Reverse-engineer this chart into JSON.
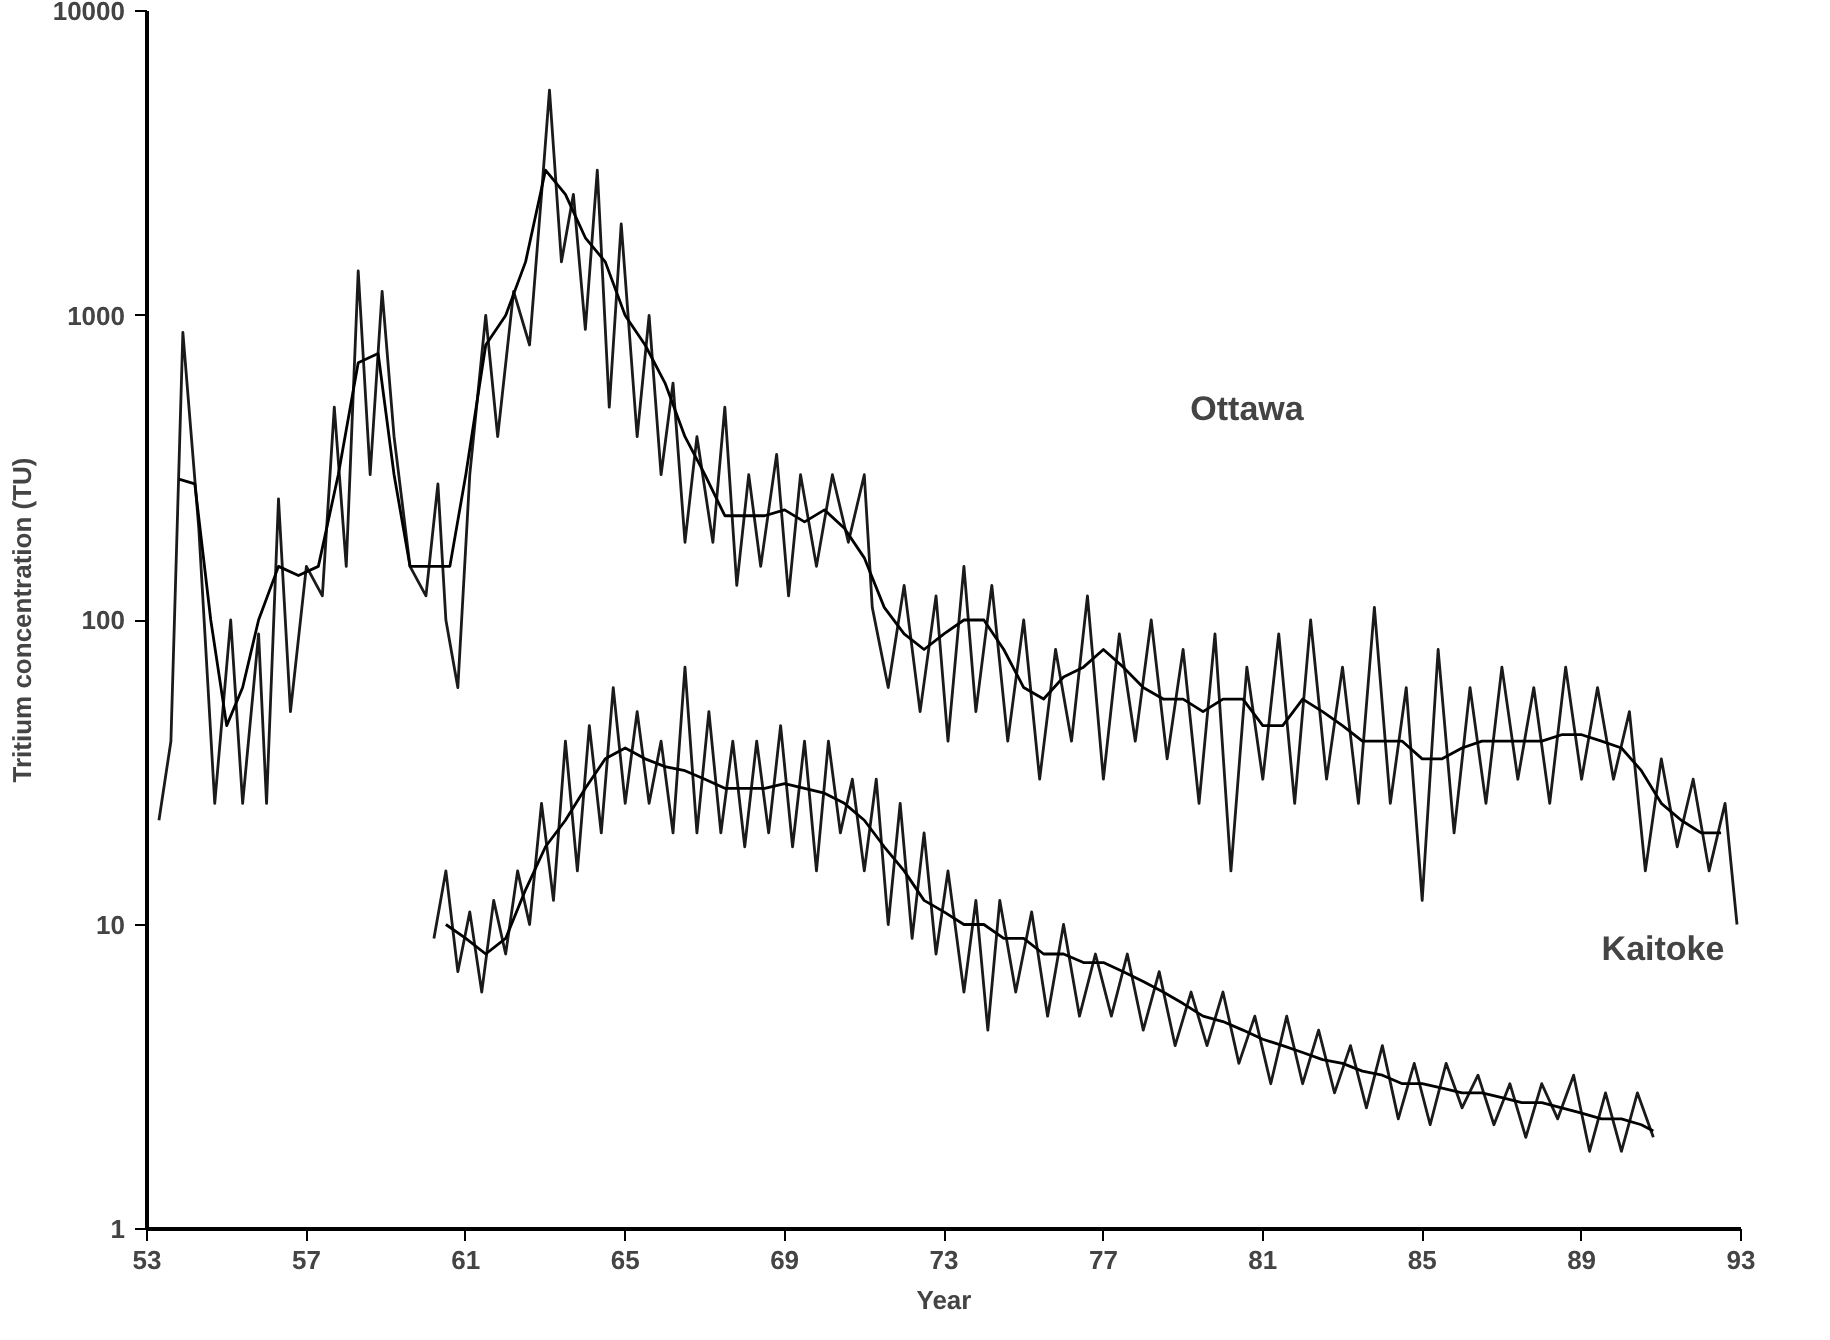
{
  "chart_data": {
    "type": "line",
    "xlabel": "Year",
    "ylabel": "Tritium concentration (TU)",
    "log": "y",
    "grid": false,
    "xlim": [
      53,
      93
    ],
    "ylim": [
      1,
      10000
    ],
    "xticks": [
      53,
      57,
      61,
      65,
      69,
      73,
      77,
      81,
      85,
      89,
      93
    ],
    "yticks": [
      1,
      10,
      100,
      1000,
      10000
    ],
    "annotations": [
      "Ottawa",
      "Kaitoke"
    ],
    "series": [
      {
        "color": "#1a1a1a",
        "x": [
          53.3,
          53.6,
          53.9,
          54.3,
          54.7,
          55.1,
          55.4,
          55.8,
          56.0,
          56.3,
          56.6,
          57.0,
          57.4,
          57.7,
          58.0,
          58.3,
          58.6,
          58.9,
          59.2,
          59.6,
          60.0,
          60.3,
          60.5,
          60.8,
          61.1,
          61.5,
          61.8,
          62.2,
          62.6,
          62.9,
          63.1,
          63.4,
          63.7,
          64.0,
          64.3,
          64.6,
          64.9,
          65.3,
          65.6,
          65.9,
          66.2,
          66.5,
          66.8,
          67.2,
          67.5,
          67.8,
          68.1,
          68.4,
          68.8,
          69.1,
          69.4,
          69.8,
          70.2,
          70.6,
          71.0,
          71.2,
          71.6,
          72.0,
          72.4,
          72.8,
          73.1,
          73.5,
          73.8,
          74.2,
          74.6,
          75.0,
          75.4,
          75.8,
          76.2,
          76.6,
          77.0,
          77.4,
          77.8,
          78.2,
          78.6,
          79.0,
          79.4,
          79.8,
          80.2,
          80.6,
          81.0,
          81.4,
          81.8,
          82.2,
          82.6,
          83.0,
          83.4,
          83.8,
          84.2,
          84.6,
          85.0,
          85.4,
          85.8,
          86.2,
          86.6,
          87.0,
          87.4,
          87.8,
          88.2,
          88.6,
          89.0,
          89.4,
          89.8,
          90.2,
          90.6,
          91.0,
          91.4,
          91.8,
          92.2,
          92.6,
          92.9
        ],
        "values": [
          22,
          40,
          880,
          200,
          25,
          100,
          25,
          90,
          25,
          250,
          50,
          150,
          120,
          500,
          150,
          1400,
          300,
          1200,
          400,
          150,
          120,
          280,
          100,
          60,
          300,
          1000,
          400,
          1200,
          800,
          2500,
          5500,
          1500,
          2500,
          900,
          3000,
          500,
          2000,
          400,
          1000,
          300,
          600,
          180,
          400,
          180,
          500,
          130,
          300,
          150,
          350,
          120,
          300,
          150,
          300,
          180,
          300,
          110,
          60,
          130,
          50,
          120,
          40,
          150,
          50,
          130,
          40,
          100,
          30,
          80,
          40,
          120,
          30,
          90,
          40,
          100,
          35,
          80,
          25,
          90,
          15,
          70,
          30,
          90,
          25,
          100,
          30,
          70,
          25,
          110,
          25,
          60,
          12,
          80,
          20,
          60,
          25,
          70,
          30,
          60,
          25,
          70,
          30,
          60,
          30,
          50,
          15,
          35,
          18,
          30,
          15,
          25,
          10
        ]
      },
      {
        "color": "#000000",
        "x": [
          53.8,
          54.2,
          54.6,
          55.0,
          55.4,
          55.8,
          56.3,
          56.8,
          57.3,
          57.8,
          58.3,
          58.8,
          59.2,
          59.6,
          60.2,
          60.6,
          61.0,
          61.5,
          62.0,
          62.5,
          63.0,
          63.5,
          64.0,
          64.5,
          65.0,
          65.5,
          66.0,
          66.5,
          67.0,
          67.5,
          68.0,
          68.5,
          69.0,
          69.5,
          70.0,
          70.5,
          71.0,
          71.5,
          72.0,
          72.5,
          73.0,
          73.5,
          74.0,
          74.5,
          75.0,
          75.5,
          76.0,
          76.5,
          77.0,
          77.5,
          78.0,
          78.5,
          79.0,
          79.5,
          80.0,
          80.5,
          81.0,
          81.5,
          82.0,
          82.5,
          83.0,
          83.5,
          84.0,
          84.5,
          85.0,
          85.5,
          86.0,
          86.5,
          87.0,
          87.5,
          88.0,
          88.5,
          89.0,
          89.5,
          90.0,
          90.5,
          91.0,
          91.5,
          92.0,
          92.5
        ],
        "values": [
          290,
          280,
          100,
          45,
          60,
          100,
          150,
          140,
          150,
          300,
          700,
          750,
          300,
          150,
          150,
          150,
          300,
          800,
          1000,
          1500,
          3000,
          2500,
          1800,
          1500,
          1000,
          800,
          600,
          400,
          300,
          220,
          220,
          220,
          230,
          210,
          230,
          200,
          160,
          110,
          90,
          80,
          90,
          100,
          100,
          80,
          60,
          55,
          65,
          70,
          80,
          70,
          60,
          55,
          55,
          50,
          55,
          55,
          45,
          45,
          55,
          50,
          45,
          40,
          40,
          40,
          35,
          35,
          38,
          40,
          40,
          40,
          40,
          42,
          42,
          40,
          38,
          32,
          25,
          22,
          20,
          20
        ]
      },
      {
        "color": "#1a1a1a",
        "x": [
          60.2,
          60.5,
          60.8,
          61.1,
          61.4,
          61.7,
          62.0,
          62.3,
          62.6,
          62.9,
          63.2,
          63.5,
          63.8,
          64.1,
          64.4,
          64.7,
          65.0,
          65.3,
          65.6,
          65.9,
          66.2,
          66.5,
          66.8,
          67.1,
          67.4,
          67.7,
          68.0,
          68.3,
          68.6,
          68.9,
          69.2,
          69.5,
          69.8,
          70.1,
          70.4,
          70.7,
          71.0,
          71.3,
          71.6,
          71.9,
          72.2,
          72.5,
          72.8,
          73.1,
          73.5,
          73.8,
          74.1,
          74.4,
          74.8,
          75.2,
          75.6,
          76.0,
          76.4,
          76.8,
          77.2,
          77.6,
          78.0,
          78.4,
          78.8,
          79.2,
          79.6,
          80.0,
          80.4,
          80.8,
          81.2,
          81.6,
          82.0,
          82.4,
          82.8,
          83.2,
          83.6,
          84.0,
          84.4,
          84.8,
          85.2,
          85.6,
          86.0,
          86.4,
          86.8,
          87.2,
          87.6,
          88.0,
          88.4,
          88.8,
          89.2,
          89.6,
          90.0,
          90.4,
          90.8
        ],
        "values": [
          9,
          15,
          7,
          11,
          6,
          12,
          8,
          15,
          10,
          25,
          12,
          40,
          15,
          45,
          20,
          60,
          25,
          50,
          25,
          40,
          20,
          70,
          20,
          50,
          20,
          40,
          18,
          40,
          20,
          45,
          18,
          40,
          15,
          40,
          20,
          30,
          15,
          30,
          10,
          25,
          9,
          20,
          8,
          15,
          6,
          12,
          4.5,
          12,
          6,
          11,
          5,
          10,
          5,
          8,
          5,
          8,
          4.5,
          7,
          4,
          6,
          4,
          6,
          3.5,
          5,
          3,
          5,
          3,
          4.5,
          2.8,
          4,
          2.5,
          4,
          2.3,
          3.5,
          2.2,
          3.5,
          2.5,
          3.2,
          2.2,
          3,
          2,
          3,
          2.3,
          3.2,
          1.8,
          2.8,
          1.8,
          2.8,
          2
        ]
      },
      {
        "color": "#000000",
        "x": [
          60.5,
          61.0,
          61.5,
          62.0,
          62.5,
          63.0,
          63.5,
          64.0,
          64.5,
          65.0,
          65.5,
          66.0,
          66.5,
          67.0,
          67.5,
          68.0,
          68.5,
          69.0,
          69.5,
          70.0,
          70.5,
          71.0,
          71.5,
          72.0,
          72.5,
          73.0,
          73.5,
          74.0,
          74.5,
          75.0,
          75.5,
          76.0,
          76.5,
          77.0,
          77.5,
          78.0,
          78.5,
          79.0,
          79.5,
          80.0,
          80.5,
          81.0,
          81.5,
          82.0,
          82.5,
          83.0,
          83.5,
          84.0,
          84.5,
          85.0,
          85.5,
          86.0,
          86.5,
          87.0,
          87.5,
          88.0,
          88.5,
          89.0,
          89.5,
          90.0,
          90.5,
          90.8
        ],
        "values": [
          10,
          9,
          8,
          9,
          13,
          18,
          22,
          28,
          35,
          38,
          35,
          33,
          32,
          30,
          28,
          28,
          28,
          29,
          28,
          27,
          25,
          22,
          18,
          15,
          12,
          11,
          10,
          10,
          9,
          9,
          8,
          8,
          7.5,
          7.5,
          7,
          6.5,
          6,
          5.5,
          5,
          4.8,
          4.5,
          4.2,
          4,
          3.8,
          3.6,
          3.5,
          3.3,
          3.2,
          3,
          3,
          2.9,
          2.8,
          2.8,
          2.7,
          2.6,
          2.6,
          2.5,
          2.4,
          2.3,
          2.3,
          2.2,
          2.1
        ]
      }
    ]
  }
}
